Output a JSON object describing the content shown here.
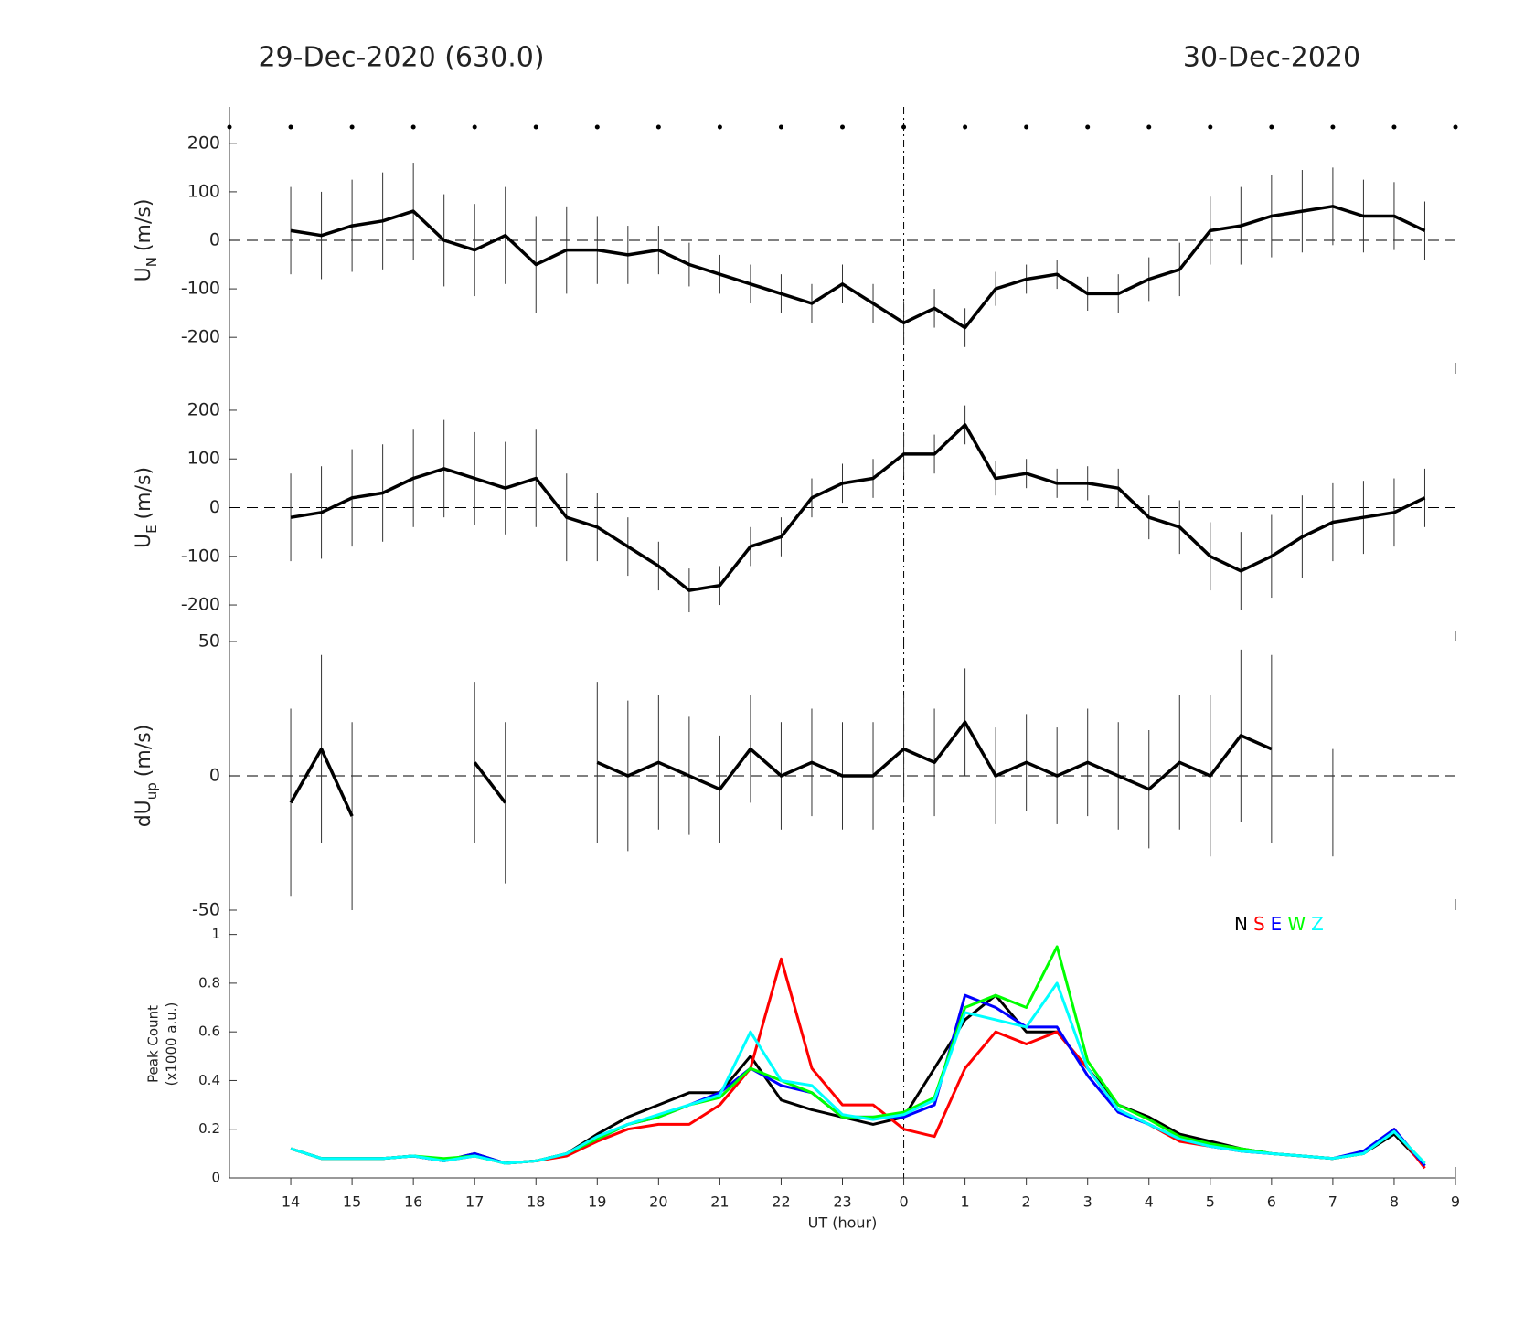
{
  "header": {
    "left_title": "29-Dec-2020 (630.0)",
    "right_title": "30-Dec-2020"
  },
  "chart_data": [
    {
      "type": "errorline",
      "ylabel": {
        "text": "U",
        "sub": "N",
        "unit": "(m/s)"
      },
      "xlim": [
        13,
        33
      ],
      "ylim": [
        -275,
        275
      ],
      "yticks": [
        -200,
        -100,
        0,
        100,
        200
      ],
      "zero_line": true,
      "vline": 24,
      "hour_dots": true,
      "x": [
        14,
        14.5,
        15,
        15.5,
        16,
        16.5,
        17,
        17.5,
        18,
        18.5,
        19,
        19.5,
        20,
        20.5,
        21,
        21.5,
        22,
        22.5,
        23,
        23.5,
        24,
        24.5,
        25,
        25.5,
        26,
        26.5,
        27,
        27.5,
        28,
        28.5,
        29,
        29.5,
        30,
        30.5,
        31,
        31.5,
        32,
        32.5
      ],
      "series": [
        {
          "color": "#000000",
          "values": [
            20,
            10,
            30,
            40,
            60,
            0,
            -20,
            10,
            -50,
            -20,
            -20,
            -30,
            -20,
            -50,
            -70,
            -90,
            -110,
            -130,
            -90,
            -130,
            -170,
            -140,
            -180,
            -100,
            -80,
            -70,
            -110,
            -110,
            -80,
            -60,
            20,
            30,
            50,
            60,
            70,
            50,
            50,
            20
          ],
          "errors": [
            90,
            90,
            95,
            100,
            100,
            95,
            95,
            100,
            100,
            90,
            70,
            60,
            50,
            45,
            40,
            40,
            40,
            40,
            40,
            40,
            45,
            40,
            40,
            35,
            30,
            30,
            35,
            40,
            45,
            55,
            70,
            80,
            85,
            85,
            80,
            75,
            70,
            60
          ]
        }
      ]
    },
    {
      "type": "errorline",
      "ylabel": {
        "text": "U",
        "sub": "E",
        "unit": "(m/s)"
      },
      "xlim": [
        13,
        33
      ],
      "ylim": [
        -275,
        275
      ],
      "yticks": [
        -200,
        -100,
        0,
        100,
        200
      ],
      "zero_line": true,
      "vline": 24,
      "x": [
        14,
        14.5,
        15,
        15.5,
        16,
        16.5,
        17,
        17.5,
        18,
        18.5,
        19,
        19.5,
        20,
        20.5,
        21,
        21.5,
        22,
        22.5,
        23,
        23.5,
        24,
        24.5,
        25,
        25.5,
        26,
        26.5,
        27,
        27.5,
        28,
        28.5,
        29,
        29.5,
        30,
        30.5,
        31,
        31.5,
        32,
        32.5
      ],
      "series": [
        {
          "color": "#000000",
          "values": [
            -20,
            -10,
            20,
            30,
            60,
            80,
            60,
            40,
            60,
            -20,
            -40,
            -80,
            -120,
            -170,
            -160,
            -80,
            -60,
            20,
            50,
            60,
            110,
            110,
            170,
            60,
            70,
            50,
            50,
            40,
            -20,
            -40,
            -100,
            -130,
            -100,
            -60,
            -30,
            -20,
            -10,
            20
          ],
          "errors": [
            90,
            95,
            100,
            100,
            100,
            100,
            95,
            95,
            100,
            90,
            70,
            60,
            50,
            45,
            40,
            40,
            40,
            40,
            40,
            40,
            45,
            40,
            40,
            35,
            30,
            30,
            35,
            40,
            45,
            55,
            70,
            80,
            85,
            85,
            80,
            75,
            70,
            60
          ]
        }
      ]
    },
    {
      "type": "errorline",
      "ylabel": {
        "text": "dU",
        "sub": "up",
        "unit": "(m/s)"
      },
      "xlim": [
        13,
        33
      ],
      "ylim": [
        -50,
        50
      ],
      "yticks": [
        -50,
        0,
        50
      ],
      "zero_line": true,
      "vline": 24,
      "x": [
        14,
        14.5,
        15,
        15.5,
        16,
        16.5,
        17,
        17.5,
        18,
        18.5,
        19,
        19.5,
        20,
        20.5,
        21,
        21.5,
        22,
        22.5,
        23,
        23.5,
        24,
        24.5,
        25,
        25.5,
        26,
        26.5,
        27,
        27.5,
        28,
        28.5,
        29,
        29.5,
        30,
        30.5,
        31,
        31.5,
        32,
        32.5
      ],
      "series": [
        {
          "color": "#000000",
          "values": [
            -10,
            10,
            -15,
            null,
            null,
            null,
            5,
            -10,
            null,
            null,
            5,
            0,
            5,
            0,
            -5,
            10,
            0,
            5,
            0,
            0,
            10,
            5,
            20,
            0,
            5,
            0,
            5,
            0,
            -5,
            5,
            0,
            15,
            10,
            null,
            -10,
            null,
            null,
            0
          ],
          "errors": [
            35,
            35,
            35,
            null,
            null,
            null,
            30,
            30,
            null,
            null,
            30,
            28,
            25,
            22,
            20,
            20,
            20,
            20,
            20,
            20,
            20,
            20,
            20,
            18,
            18,
            18,
            20,
            20,
            22,
            25,
            30,
            32,
            35,
            null,
            20,
            null,
            null,
            0
          ]
        }
      ]
    },
    {
      "type": "line",
      "ylabel": {
        "lines": [
          "Peak Count",
          "(x1000 a.u.)"
        ]
      },
      "xlim": [
        13,
        33
      ],
      "ylim": [
        0,
        1.1
      ],
      "yticks": [
        0,
        0.2,
        0.4,
        0.6,
        0.8,
        1
      ],
      "vline": 24,
      "xlabel": "UT (hour)",
      "xticks": [
        14,
        15,
        16,
        17,
        18,
        19,
        20,
        21,
        22,
        23,
        {
          "value": 24,
          "label": "0"
        },
        {
          "value": 25,
          "label": "1"
        },
        {
          "value": 26,
          "label": "2"
        },
        {
          "value": 27,
          "label": "3"
        },
        {
          "value": 28,
          "label": "4"
        },
        {
          "value": 29,
          "label": "5"
        },
        {
          "value": 30,
          "label": "6"
        },
        {
          "value": 31,
          "label": "7"
        },
        {
          "value": 32,
          "label": "8"
        },
        {
          "value": 33,
          "label": "9"
        }
      ],
      "x": [
        14,
        14.5,
        15,
        15.5,
        16,
        16.5,
        17,
        17.5,
        18,
        18.5,
        19,
        19.5,
        20,
        20.5,
        21,
        21.5,
        22,
        22.5,
        23,
        23.5,
        24,
        24.5,
        25,
        25.5,
        26,
        26.5,
        27,
        27.5,
        28,
        28.5,
        29,
        29.5,
        30,
        30.5,
        31,
        31.5,
        32,
        32.5
      ],
      "series": [
        {
          "name": "N",
          "color": "#000000",
          "values": [
            0.12,
            0.08,
            0.08,
            0.08,
            0.09,
            0.07,
            0.1,
            0.06,
            0.07,
            0.1,
            0.18,
            0.25,
            0.3,
            0.35,
            0.35,
            0.5,
            0.32,
            0.28,
            0.25,
            0.22,
            0.25,
            0.45,
            0.65,
            0.75,
            0.6,
            0.6,
            0.45,
            0.3,
            0.25,
            0.18,
            0.15,
            0.12,
            0.1,
            0.09,
            0.08,
            0.1,
            0.18,
            0.05
          ]
        },
        {
          "name": "S",
          "color": "#ff0000",
          "values": [
            0.12,
            0.08,
            0.08,
            0.08,
            0.09,
            0.07,
            0.09,
            0.06,
            0.07,
            0.09,
            0.15,
            0.2,
            0.22,
            0.22,
            0.3,
            0.45,
            0.9,
            0.45,
            0.3,
            0.3,
            0.2,
            0.17,
            0.45,
            0.6,
            0.55,
            0.6,
            0.45,
            0.28,
            0.22,
            0.15,
            0.13,
            0.11,
            0.1,
            0.09,
            0.08,
            0.1,
            0.2,
            0.04
          ]
        },
        {
          "name": "E",
          "color": "#0000ff",
          "values": [
            0.12,
            0.08,
            0.08,
            0.08,
            0.09,
            0.07,
            0.1,
            0.06,
            0.07,
            0.1,
            0.16,
            0.22,
            0.25,
            0.3,
            0.35,
            0.45,
            0.38,
            0.35,
            0.25,
            0.25,
            0.25,
            0.3,
            0.75,
            0.7,
            0.62,
            0.62,
            0.42,
            0.27,
            0.22,
            0.16,
            0.13,
            0.11,
            0.1,
            0.09,
            0.08,
            0.11,
            0.2,
            0.05
          ]
        },
        {
          "name": "W",
          "color": "#00ff00",
          "values": [
            0.12,
            0.08,
            0.08,
            0.08,
            0.09,
            0.08,
            0.09,
            0.06,
            0.07,
            0.1,
            0.16,
            0.22,
            0.25,
            0.3,
            0.33,
            0.45,
            0.4,
            0.35,
            0.25,
            0.25,
            0.27,
            0.33,
            0.7,
            0.75,
            0.7,
            0.95,
            0.48,
            0.3,
            0.24,
            0.17,
            0.14,
            0.12,
            0.1,
            0.09,
            0.08,
            0.1,
            0.19,
            0.06
          ]
        },
        {
          "name": "Z",
          "color": "#00ffff",
          "values": [
            0.12,
            0.08,
            0.08,
            0.08,
            0.09,
            0.07,
            0.09,
            0.06,
            0.07,
            0.1,
            0.17,
            0.22,
            0.26,
            0.3,
            0.34,
            0.6,
            0.4,
            0.38,
            0.26,
            0.24,
            0.26,
            0.32,
            0.68,
            0.65,
            0.62,
            0.8,
            0.45,
            0.28,
            0.22,
            0.16,
            0.13,
            0.11,
            0.1,
            0.09,
            0.08,
            0.1,
            0.19,
            0.06
          ]
        }
      ]
    }
  ]
}
